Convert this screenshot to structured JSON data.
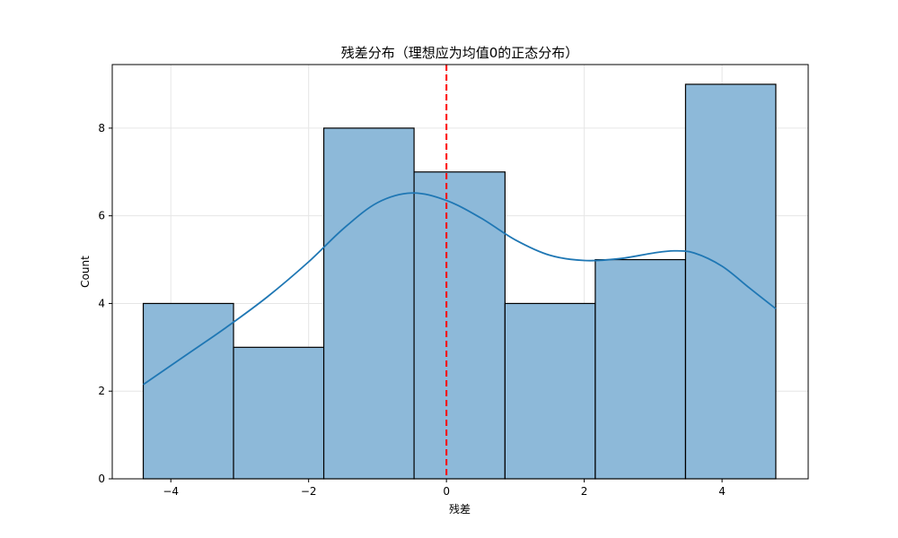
{
  "chart_data": {
    "type": "bar",
    "title": "残差分布（理想应为均值0的正态分布）",
    "xlabel": "残差",
    "ylabel": "Count",
    "xlim": [
      -4.85,
      5.25
    ],
    "ylim": [
      0,
      9.45
    ],
    "xticks": [
      -4,
      -2,
      0,
      2,
      4
    ],
    "xtick_labels": [
      "−4",
      "−2",
      "0",
      "2",
      "4"
    ],
    "yticks": [
      0,
      2,
      4,
      6,
      8
    ],
    "ytick_labels": [
      "0",
      "2",
      "4",
      "6",
      "8"
    ],
    "grid": true,
    "bins": [
      {
        "x0": -4.4,
        "x1": -3.09,
        "count": 4
      },
      {
        "x0": -3.09,
        "x1": -1.78,
        "count": 3
      },
      {
        "x0": -1.78,
        "x1": -0.47,
        "count": 8
      },
      {
        "x0": -0.47,
        "x1": 0.85,
        "count": 7
      },
      {
        "x0": 0.85,
        "x1": 2.16,
        "count": 4
      },
      {
        "x0": 2.16,
        "x1": 3.47,
        "count": 5
      },
      {
        "x0": 3.47,
        "x1": 4.78,
        "count": 9
      }
    ],
    "kde": {
      "x": [
        -4.4,
        -3.8,
        -3.2,
        -2.6,
        -2.0,
        -1.5,
        -1.0,
        -0.5,
        0.0,
        0.5,
        1.0,
        1.5,
        2.0,
        2.5,
        3.0,
        3.3,
        3.6,
        4.0,
        4.4,
        4.78
      ],
      "y": [
        2.15,
        2.8,
        3.45,
        4.15,
        4.95,
        5.7,
        6.3,
        6.52,
        6.35,
        5.95,
        5.45,
        5.1,
        4.98,
        5.02,
        5.15,
        5.2,
        5.15,
        4.85,
        4.35,
        3.88
      ]
    },
    "reference_line": {
      "x": 0,
      "color": "#ff0000",
      "style": "dashed"
    },
    "colors": {
      "bar_fill": "#8db9d9",
      "bar_edge": "#000000",
      "kde_line": "#1f77b4",
      "grid": "#e6e6e6"
    }
  }
}
